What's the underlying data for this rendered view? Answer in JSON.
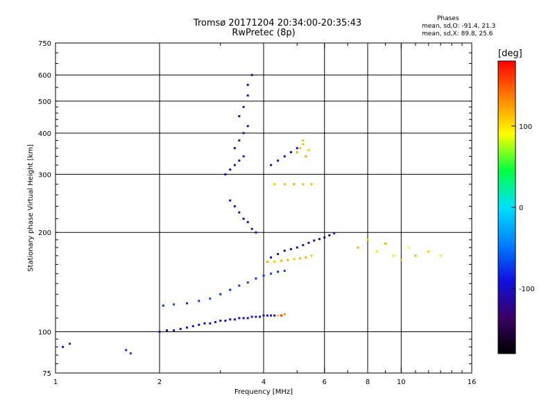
{
  "header": {
    "title_line1": "Tromsø 20171204 20:34:00-20:35:43",
    "title_line2": "RwPretec (8p)",
    "phase_title": "Phases",
    "phase_o": "mean, sd,O: -91.4, 21.3",
    "phase_x": "mean, sd,X:  89.8, 25.6"
  },
  "colorbar": {
    "unit": "[deg]",
    "ticks": [
      {
        "value": 100,
        "label": "100"
      },
      {
        "value": 0,
        "label": "0"
      },
      {
        "value": -100,
        "label": "-100"
      }
    ],
    "range": [
      -180,
      180
    ],
    "stops": [
      "#000000",
      "#3a0066",
      "#1010e0",
      "#0080ff",
      "#00e0ff",
      "#00ff40",
      "#ffff00",
      "#ff8000",
      "#ff0000"
    ]
  },
  "chart_data": {
    "type": "scatter",
    "title": "Tromsø 20171204 20:34:00-20:35:43",
    "subtitle": "RwPretec (8p)",
    "xlabel": "Frequency [MHz]",
    "ylabel": "Stationary phase Virtual Height [km]",
    "xscale": "log",
    "yscale": "log",
    "xlim": [
      1,
      16
    ],
    "ylim": [
      75,
      750
    ],
    "grid": true,
    "xticks": [
      1,
      2,
      4,
      6,
      8,
      10,
      16
    ],
    "yticks": [
      75,
      100,
      200,
      300,
      400,
      500,
      600,
      750
    ],
    "series": [
      {
        "points": [
          [
            2.0,
            100,
            -100
          ],
          [
            2.1,
            101,
            -95
          ],
          [
            2.2,
            101,
            -90
          ],
          [
            2.3,
            102,
            -100
          ],
          [
            2.4,
            103,
            -95
          ],
          [
            2.5,
            104,
            -90
          ],
          [
            2.6,
            105,
            -100
          ],
          [
            2.7,
            106,
            -95
          ],
          [
            2.8,
            106,
            -100
          ],
          [
            2.9,
            107,
            -90
          ],
          [
            3.0,
            108,
            -95
          ],
          [
            3.1,
            108,
            -100
          ],
          [
            3.2,
            109,
            -95
          ],
          [
            3.3,
            109,
            -90
          ],
          [
            3.4,
            110,
            -100
          ],
          [
            3.5,
            110,
            -95
          ],
          [
            3.6,
            110,
            -90
          ],
          [
            3.7,
            111,
            -100
          ],
          [
            3.8,
            111,
            -95
          ],
          [
            3.9,
            111,
            -90
          ],
          [
            4.0,
            112,
            -100
          ],
          [
            4.1,
            112,
            -95
          ],
          [
            4.2,
            112,
            -90
          ],
          [
            4.3,
            112,
            -100
          ],
          [
            4.4,
            112,
            110
          ],
          [
            4.5,
            112,
            160
          ],
          [
            4.6,
            113,
            130
          ],
          [
            2.05,
            120,
            -80
          ],
          [
            2.2,
            121,
            -70
          ],
          [
            2.4,
            122,
            -75
          ],
          [
            2.6,
            124,
            -80
          ],
          [
            2.8,
            126,
            -70
          ],
          [
            3.0,
            130,
            -75
          ],
          [
            3.2,
            134,
            -80
          ],
          [
            3.4,
            138,
            -75
          ],
          [
            3.6,
            141,
            -70
          ],
          [
            3.8,
            145,
            -80
          ],
          [
            4.0,
            148,
            -75
          ],
          [
            4.2,
            150,
            -70
          ],
          [
            4.4,
            152,
            -80
          ],
          [
            4.6,
            153,
            -75
          ],
          [
            4.2,
            168,
            -120
          ],
          [
            4.4,
            172,
            -115
          ],
          [
            4.6,
            176,
            -120
          ],
          [
            4.8,
            178,
            -115
          ],
          [
            5.0,
            180,
            -120
          ],
          [
            5.2,
            183,
            -115
          ],
          [
            5.4,
            186,
            -120
          ],
          [
            5.6,
            189,
            -115
          ],
          [
            5.8,
            191,
            -120
          ],
          [
            6.0,
            193,
            -115
          ],
          [
            6.2,
            196,
            -120
          ],
          [
            6.4,
            199,
            -115
          ],
          [
            4.1,
            163,
            120
          ],
          [
            4.3,
            163,
            110
          ],
          [
            4.5,
            164,
            115
          ],
          [
            4.7,
            165,
            120
          ],
          [
            4.9,
            166,
            110
          ],
          [
            5.1,
            167,
            115
          ],
          [
            5.3,
            168,
            120
          ],
          [
            5.5,
            170,
            110
          ],
          [
            3.1,
            300,
            -110
          ],
          [
            3.2,
            310,
            -100
          ],
          [
            3.3,
            320,
            -120
          ],
          [
            3.4,
            330,
            -110
          ],
          [
            3.5,
            340,
            -100
          ],
          [
            3.3,
            360,
            -115
          ],
          [
            3.4,
            380,
            -105
          ],
          [
            3.5,
            400,
            -110
          ],
          [
            3.6,
            420,
            -100
          ],
          [
            3.4,
            450,
            -120
          ],
          [
            3.5,
            480,
            -110
          ],
          [
            3.6,
            520,
            -100
          ],
          [
            3.6,
            560,
            -110
          ],
          [
            3.7,
            600,
            -115
          ],
          [
            3.2,
            250,
            -100
          ],
          [
            3.3,
            240,
            -110
          ],
          [
            3.4,
            230,
            -105
          ],
          [
            3.5,
            220,
            -115
          ],
          [
            3.6,
            215,
            -100
          ],
          [
            3.7,
            205,
            -110
          ],
          [
            3.8,
            200,
            -105
          ],
          [
            4.2,
            320,
            -100
          ],
          [
            4.4,
            330,
            -95
          ],
          [
            4.6,
            340,
            -105
          ],
          [
            4.8,
            350,
            -100
          ],
          [
            5.0,
            360,
            -95
          ],
          [
            5.0,
            350,
            120
          ],
          [
            5.1,
            360,
            110
          ],
          [
            5.2,
            370,
            115
          ],
          [
            5.3,
            340,
            120
          ],
          [
            5.4,
            355,
            110
          ],
          [
            5.2,
            380,
            115
          ],
          [
            4.3,
            280,
            110
          ],
          [
            4.6,
            280,
            115
          ],
          [
            4.9,
            280,
            120
          ],
          [
            5.2,
            280,
            110
          ],
          [
            5.5,
            280,
            115
          ],
          [
            7.5,
            180,
            120
          ],
          [
            8.0,
            190,
            110
          ],
          [
            8.5,
            175,
            100
          ],
          [
            9.0,
            185,
            120
          ],
          [
            9.5,
            170,
            80
          ],
          [
            10.0,
            165,
            110
          ],
          [
            10.5,
            180,
            90
          ],
          [
            11.0,
            170,
            120
          ],
          [
            12.0,
            175,
            110
          ],
          [
            13.0,
            170,
            100
          ],
          [
            1.05,
            90,
            -90
          ],
          [
            1.1,
            92,
            -80
          ],
          [
            1.6,
            88,
            -80
          ],
          [
            1.65,
            86,
            -70
          ]
        ]
      }
    ]
  }
}
